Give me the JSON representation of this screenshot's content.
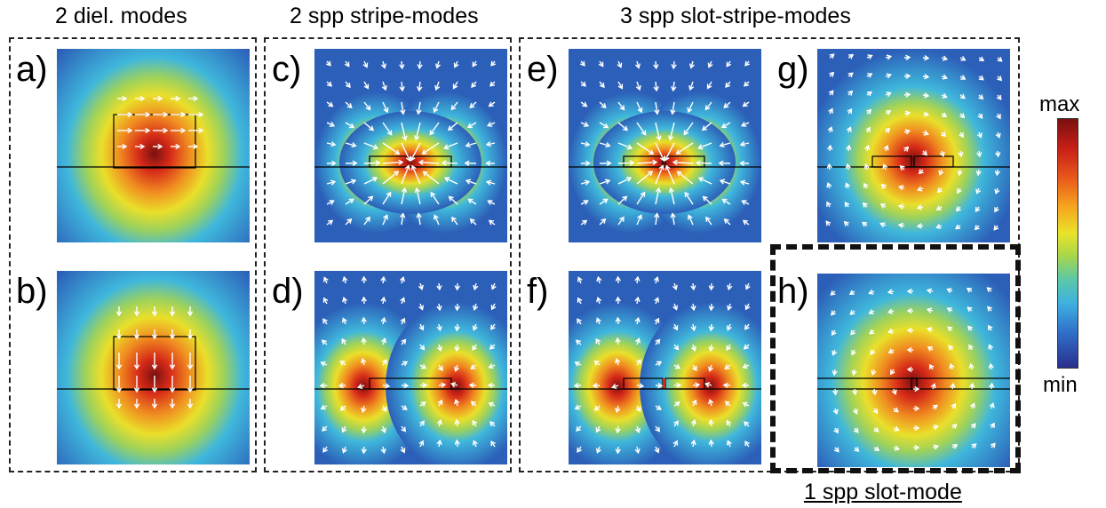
{
  "headings": {
    "dielectric": "2 diel. modes",
    "stripe": "2 spp stripe-modes",
    "slot_stripe": "3 spp slot-stripe-modes",
    "slot": "1 spp slot-mode"
  },
  "colorbar": {
    "max_label": "max",
    "min_label": "min"
  },
  "panels": [
    {
      "id": "a",
      "label": "a)",
      "type": "diel-h"
    },
    {
      "id": "b",
      "label": "b)",
      "type": "diel-v"
    },
    {
      "id": "c",
      "label": "c)",
      "type": "stripe-sym"
    },
    {
      "id": "d",
      "label": "d)",
      "type": "stripe-anti"
    },
    {
      "id": "e",
      "label": "e)",
      "type": "slot-stripe-sym"
    },
    {
      "id": "f",
      "label": "f)",
      "type": "slot-stripe-anti"
    },
    {
      "id": "g",
      "label": "g)",
      "type": "slot-stripe-rot"
    },
    {
      "id": "h",
      "label": "h)",
      "type": "slot"
    }
  ],
  "colors": {
    "field_max": "#7a1010",
    "field_high": "#d62a18",
    "field_orange": "#f08a20",
    "field_yellow": "#eadf2a",
    "field_green": "#9fd25a",
    "field_cyan": "#3fb7dc",
    "field_blue": "#2c5fb8",
    "arrow": "#ffffff",
    "outline": "#000000"
  }
}
